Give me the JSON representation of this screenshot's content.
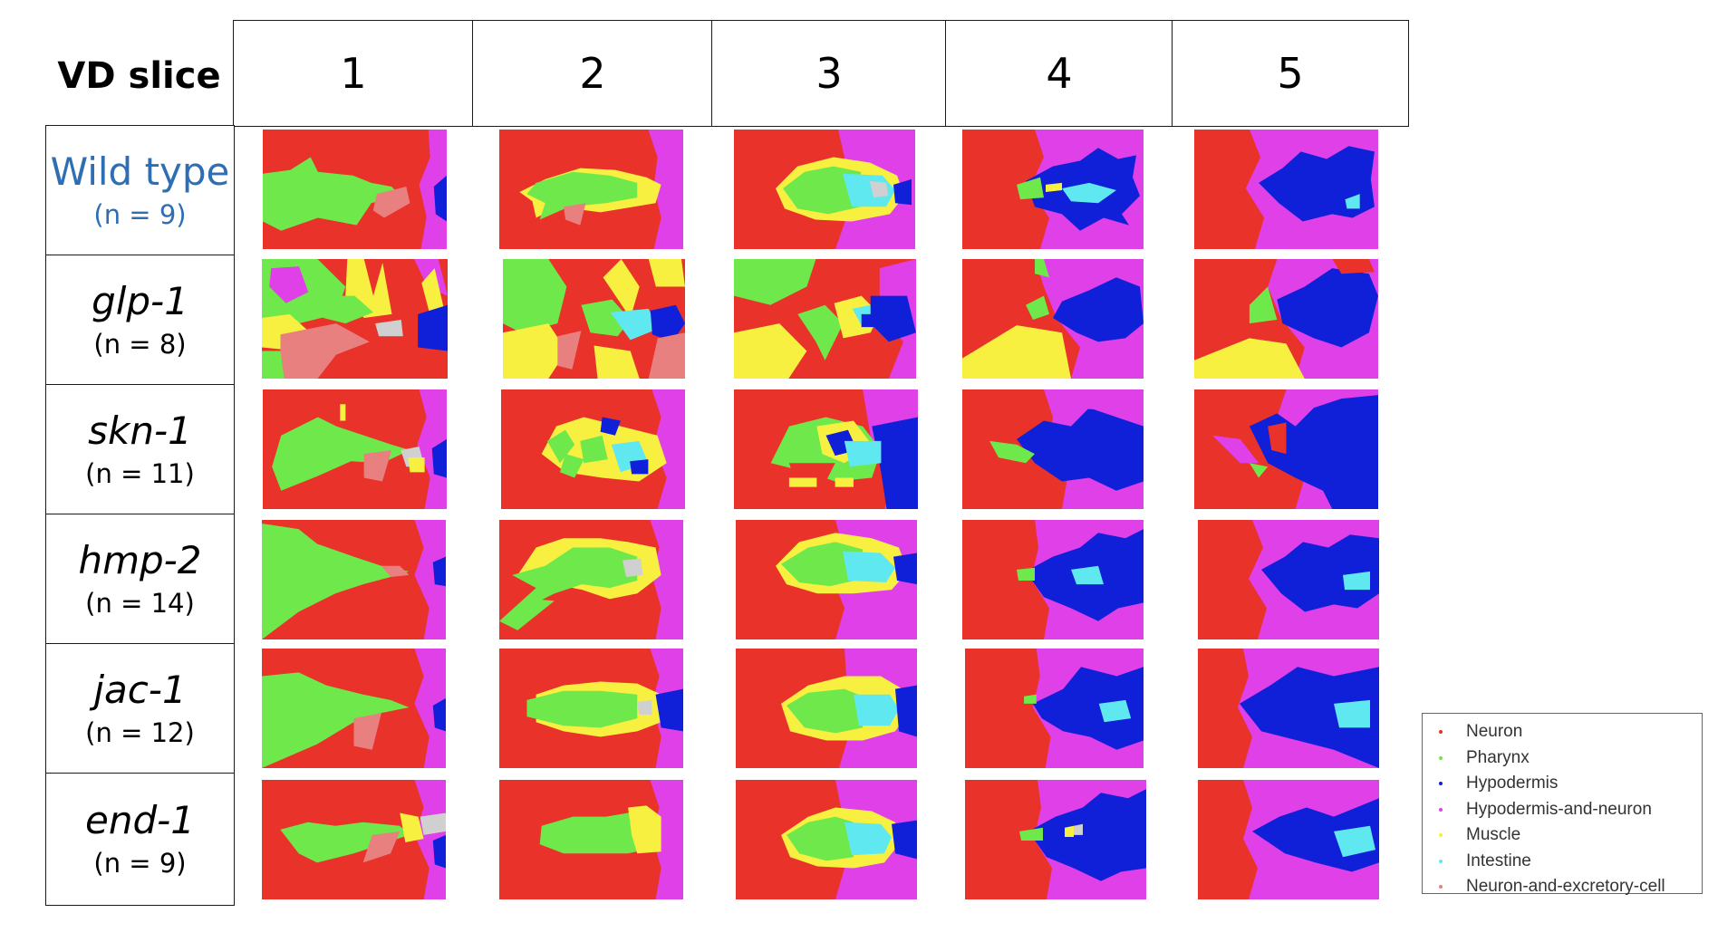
{
  "table": {
    "corner_label": "VD slice",
    "columns": [
      "1",
      "2",
      "3",
      "4",
      "5"
    ],
    "rows": [
      {
        "gene": "Wild type",
        "count": "(n = 9)",
        "highlight": true
      },
      {
        "gene": "glp-1",
        "count": "(n = 8)",
        "highlight": false
      },
      {
        "gene": "skn-1",
        "count": "(n = 11)",
        "highlight": false
      },
      {
        "gene": "hmp-2",
        "count": "(n = 14)",
        "highlight": false
      },
      {
        "gene": "jac-1",
        "count": "(n = 12)",
        "highlight": false
      },
      {
        "gene": "end-1",
        "count": "(n = 9)",
        "highlight": false
      }
    ]
  },
  "legend": {
    "items": [
      {
        "label": "Neuron",
        "color": "#e8322a"
      },
      {
        "label": "Pharynx",
        "color": "#6ee84a"
      },
      {
        "label": "Hypodermis",
        "color": "#1020d8"
      },
      {
        "label": "Hypodermis-and-neuron",
        "color": "#e040e8"
      },
      {
        "label": "Muscle",
        "color": "#f8f040"
      },
      {
        "label": "Intestine",
        "color": "#60e8f0"
      },
      {
        "label": "Neuron-and-excretory-cell",
        "color": "#e88080"
      }
    ]
  },
  "colors": {
    "wild_type_text": "#2e6fb4",
    "neuron": "#e8322a",
    "pharynx": "#6ee84a",
    "hypodermis": "#1020d8",
    "hypodermis_and_neuron": "#e040e8",
    "muscle": "#f8f040",
    "intestine": "#60e8f0",
    "excretory": "#e88080",
    "unlabeled": "#d0d0d0"
  }
}
